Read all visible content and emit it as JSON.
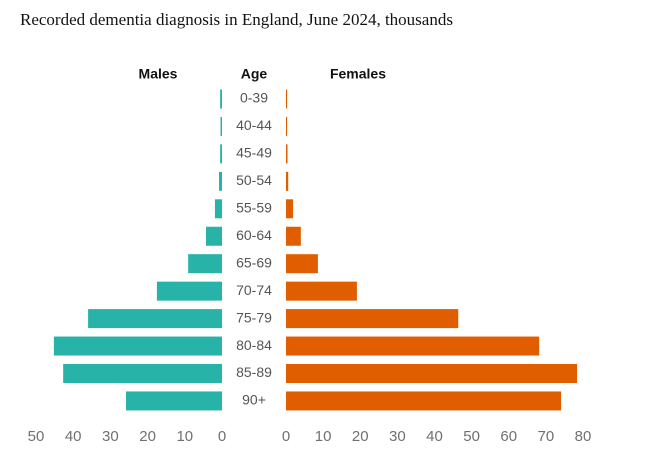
{
  "chart_data": {
    "type": "pyramid",
    "title": "Recorded dementia diagnosis in England, June 2024, thousands",
    "category_label": "Age",
    "categories": [
      "0-39",
      "40-44",
      "45-49",
      "50-54",
      "55-59",
      "60-64",
      "65-69",
      "70-74",
      "75-79",
      "80-84",
      "85-89",
      "90+"
    ],
    "series": [
      {
        "name": "Males",
        "color": "#27b3a7",
        "side": "left",
        "values": [
          0.5,
          0.4,
          0.5,
          0.8,
          1.9,
          4.3,
          9.1,
          17.5,
          36,
          45.2,
          42.7,
          25.8
        ],
        "xlim": [
          0,
          50
        ],
        "xticks": [
          50,
          40,
          30,
          20,
          10,
          0
        ]
      },
      {
        "name": "Females",
        "color": "#e05e00",
        "side": "right",
        "values": [
          0.3,
          0.3,
          0.4,
          0.6,
          1.9,
          4,
          8.6,
          19.1,
          46.4,
          68.2,
          78.4,
          74.1
        ],
        "xlim": [
          0,
          80
        ],
        "xticks": [
          0,
          10,
          20,
          30,
          40,
          50,
          60,
          70,
          80
        ]
      }
    ]
  }
}
